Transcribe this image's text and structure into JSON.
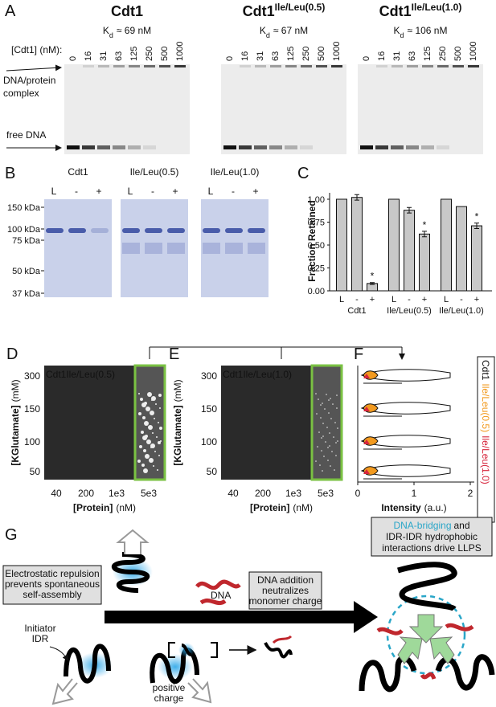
{
  "panel_a": {
    "letter": "A",
    "gels": [
      {
        "title": "Cdt1",
        "kd_symbol": "K",
        "kd_sub": "d",
        "kd_text": "≈ 69 nM"
      },
      {
        "title": "Cdt1",
        "sup": "Ile/Leu(0.5)",
        "kd_symbol": "K",
        "kd_sub": "d",
        "kd_text": "≈ 67 nM"
      },
      {
        "title": "Cdt1",
        "sup": "Ile/Leu(1.0)",
        "kd_symbol": "K",
        "kd_sub": "d",
        "kd_text": "≈ 106 nM"
      }
    ],
    "conc_label": "[Cdt1] (nM):",
    "lanes": [
      "0",
      "16",
      "31",
      "63",
      "125",
      "250",
      "500",
      "1000"
    ],
    "complex_label": [
      "DNA/protein",
      "complex"
    ],
    "free_label": "free DNA"
  },
  "panel_b": {
    "letter": "B",
    "gels": [
      "Cdt1",
      "Ile/Leu(0.5)",
      "Ile/Leu(1.0)"
    ],
    "lanes": [
      "L",
      "-",
      "+"
    ],
    "markers": [
      "150 kDa",
      "100 kDa",
      "75 kDa",
      "50 kDa",
      "37 kDa"
    ]
  },
  "chart_data": [
    {
      "type": "bar",
      "letter": "C",
      "ylabel": "Fraction Retained",
      "color": "#c8c8c8",
      "lanes": [
        "L",
        "-",
        "+"
      ],
      "groups": [
        {
          "name": "Cdt1",
          "values": [
            1.0,
            1.02,
            0.08
          ],
          "errors": [
            0,
            0.03,
            0.01
          ],
          "annotations": [
            {
              "index": 2,
              "label": "*"
            }
          ]
        },
        {
          "name": "Ile/Leu(0.5)",
          "values": [
            1.0,
            0.88,
            0.62
          ],
          "errors": [
            0,
            0.03,
            0.03
          ],
          "annotations": [
            {
              "index": 2,
              "label": "*"
            }
          ]
        },
        {
          "name": "Ile/Leu(1.0)",
          "values": [
            1.0,
            0.92,
            0.71
          ],
          "errors": [
            0,
            0,
            0.03
          ],
          "annotations": [
            {
              "index": 2,
              "label": "*"
            }
          ]
        }
      ],
      "ylim": [
        0,
        1.07
      ],
      "yticks": [
        {
          "value": 0,
          "label": "0.00"
        },
        {
          "value": 0.25,
          "label": "0.25"
        },
        {
          "value": 0.5,
          "label": "0.50"
        },
        {
          "value": 0.75,
          "label": "0.75"
        },
        {
          "value": 1,
          "label": "1.00"
        }
      ]
    },
    {
      "type": "violin",
      "letter": "F",
      "xlabel": "Intensity",
      "xlabel_unit": "(a.u.)",
      "xlim": [
        0,
        2
      ],
      "xticks": [
        0,
        1,
        2
      ],
      "legend": [
        {
          "name": "Cdt1",
          "color": "#111111"
        },
        {
          "name": "Ile/Leu(0.5)",
          "color": "#f29a1f"
        },
        {
          "name": "Ile/Leu(1.0)",
          "color": "#d7263d"
        }
      ]
    }
  ],
  "panel_d": {
    "letter": "D",
    "overlay": "Cdt1Ile/Leu(0.5)",
    "ylabel": "[KGlutamate]",
    "ylabel_unit": "(mM)",
    "yticks": [
      "300",
      "150",
      "100",
      "50"
    ],
    "xticks": [
      "40",
      "200",
      "1e3",
      "5e3"
    ],
    "xlabel": "[Protein]",
    "xlabel_unit": "(nM)"
  },
  "panel_e": {
    "letter": "E",
    "overlay": "Cdt1Ile/Leu(1.0)",
    "ylabel": "[KGlutamate]",
    "ylabel_unit": "(mM)",
    "yticks": [
      "300",
      "150",
      "100",
      "50"
    ],
    "xticks": [
      "40",
      "200",
      "1e3",
      "5e3"
    ],
    "xlabel": "[Protein]",
    "xlabel_unit": "(nM)"
  },
  "panel_g": {
    "letter": "G",
    "repulsion": [
      "Electrostatic repulsion",
      "prevents spontaneous",
      "self-assembly"
    ],
    "initiator": [
      "Initiator",
      "IDR"
    ],
    "charge": [
      "positive",
      "charge"
    ],
    "dna": "DNA",
    "addition": [
      "DNA addition",
      "neutralizes",
      "monomer charge"
    ],
    "bridging": "DNA-bridging",
    "and": "and",
    "hydrophobic": "IDR-IDR hydrophobic",
    "drive": "interactions drive LLPS"
  }
}
